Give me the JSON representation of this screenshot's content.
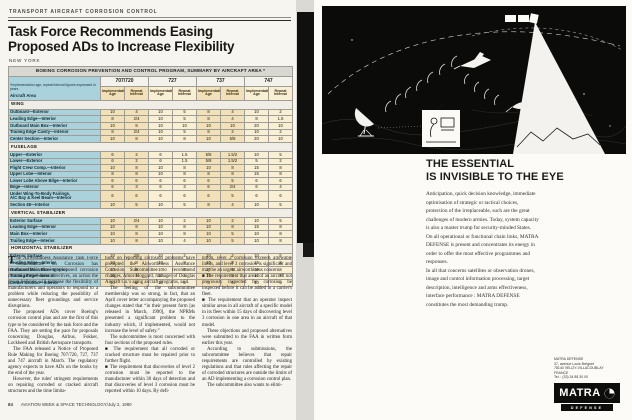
{
  "page": {
    "kicker": "TRANSPORT AIRCRAFT CORROSION CONTROL",
    "headline_line1": "Task Force Recommends Easing",
    "headline_line2": "Proposed ADs to Increase Flexibility",
    "byline": "NEW YORK",
    "page_number": "84",
    "footer": "AVIATION WEEK & SPACE TECHNOLOGY/July 2, 1990"
  },
  "colors": {
    "table_label_bg": "#a9d2dc",
    "table_cell_tan": "#f2e1b8",
    "table_cell_cream": "#f9efd4",
    "ad_background": "#0a0a0a"
  },
  "table": {
    "title": "BOEING CORROSION PREVENTION AND CONTROL PROGRAM, SUMMARY BY AIRCRAFT AREA *",
    "note": "*Implementation age, repeat interval figures expressed in years",
    "row_header": "Aircraft Area",
    "groups": [
      "707/720",
      "727",
      "737",
      "747"
    ],
    "subheaders": [
      "Implementation Age",
      "Repeat Interval"
    ],
    "sections": [
      {
        "name": "WING",
        "rows": [
          {
            "label": "Outboard—Exterior",
            "values": [
              "10",
              "4",
              "10",
              "5",
              "8",
              "4",
              "10",
              "2"
            ]
          },
          {
            "label": "Leading Edge—Interior",
            "values": [
              "8",
              "2/4",
              "10",
              "5",
              "8",
              "4",
              "8",
              "1.5"
            ]
          },
          {
            "label": "Outboard Main Box—Interior",
            "values": [
              "10",
              "8",
              "10",
              "10",
              "10",
              "10",
              "20",
              "10"
            ]
          },
          {
            "label": "Trailing Edge Cavity—Interior",
            "values": [
              "8",
              "2/4",
              "10",
              "5",
              "8",
              "2",
              "10",
              "2"
            ]
          },
          {
            "label": "Center Section—Interior",
            "values": [
              "10",
              "8",
              "10",
              "8",
              "10",
              "5/8",
              "20",
              "10"
            ]
          }
        ]
      },
      {
        "name": "FUSELAGE",
        "rows": [
          {
            "label": "Upper—Exterior",
            "values": [
              "6",
              "2",
              "6",
              "1.5",
              "5/8",
              "1.5/2",
              "10",
              "5"
            ]
          },
          {
            "label": "Lower—Exterior",
            "values": [
              "6",
              "2",
              "6",
              "1.5",
              "5/8",
              "1.5/2",
              "5",
              "2"
            ]
          },
          {
            "label": "Flight Crew Comp.—Interior",
            "values": [
              "10",
              "8",
              "10",
              "8",
              "10",
              "8",
              "15",
              "8"
            ]
          },
          {
            "label": "Upper Lobe—Interior",
            "values": [
              "8",
              "8",
              "10",
              "8",
              "8",
              "8",
              "15",
              "8"
            ]
          },
          {
            "label": "Lower Lobe Above Bilge—Interior",
            "values": [
              "6",
              "6",
              "6",
              "6",
              "6",
              "5",
              "6",
              "6"
            ]
          },
          {
            "label": "Bilge—Interior",
            "values": [
              "6",
              "3",
              "6",
              "3",
              "6",
              "2/4",
              "6",
              "4"
            ]
          },
          {
            "label": "Under Wing-To-Body Fairings,\nA/C Bay & Keel Beam—Interior",
            "values": [
              "6",
              "6",
              "6",
              "6",
              "6",
              "5",
              "6",
              "6"
            ]
          },
          {
            "label": "Section 48—Interior",
            "values": [
              "10",
              "5",
              "10",
              "5",
              "8",
              "4",
              "10",
              "5"
            ]
          }
        ]
      },
      {
        "name": "VERTICAL STABILIZER",
        "rows": [
          {
            "label": "Exterior Surface",
            "values": [
              "10",
              "2/4",
              "10",
              "2",
              "10",
              "2",
              "10",
              "5"
            ]
          },
          {
            "label": "Leading Edge—Interior",
            "values": [
              "10",
              "8",
              "10",
              "8",
              "10",
              "8",
              "15",
              "8"
            ]
          },
          {
            "label": "Main Box—Interior",
            "values": [
              "10",
              "8",
              "10",
              "8",
              "10",
              "5",
              "10",
              "8"
            ]
          },
          {
            "label": "Trailing Edge—Interior",
            "values": [
              "10",
              "8",
              "10",
              "4",
              "10",
              "5",
              "10",
              "8"
            ]
          }
        ]
      },
      {
        "name": "HORIZONTAL STABILIZER",
        "rows": [
          {
            "label": "Exterior Surface",
            "values": [
              "10",
              "2/5",
              "10",
              "2",
              "10",
              "2",
              "10",
              "5"
            ]
          },
          {
            "label": "Leading Edge—Interior",
            "values": [
              "10",
              "8",
              "10",
              "8",
              "10",
              "8",
              "15",
              "8"
            ]
          },
          {
            "label": "Outboard Main Box—Interior",
            "values": [
              "10",
              "8",
              "10",
              "8",
              "10",
              "5",
              "10",
              "8"
            ]
          },
          {
            "label": "Trailing Edge—Interior",
            "values": [
              "10",
              "8",
              "10",
              "4",
              "10",
              "5",
              "10",
              "8"
            ]
          },
          {
            "label": "Center Section—Interior",
            "values": [
              "10",
              "5",
              "10",
              "5",
              "8",
              "4",
              "10",
              "5"
            ]
          }
        ]
      }
    ]
  },
  "article": {
    "col1": [
      "The Airworthiness Assurance Task Force Subcommittee on Corrosion has recommended softening proposed corrosion control airworthiness directives, an action the group believes will increase the flexibility of manufacturers and operators to respond to a problem while reducing the possibility of unnecessary fleet groundings and service disruptions.",
      "The proposed ADs cover Boeing's corrosion control plan and are the first of this type to be considered by the task force and the FAA. They are setting the pace for proposals concerning Douglas, Airbus, Fokker, Lockheed and British Aerospace transports.",
      "The FAA released a Notice of Proposed Rule Making for Boeing 707/720, 727, 737 and 747 aircraft in March. The regulatory agency expects to have ADs on the books by the end of the year.",
      "However, the rules' stringent requirements on repairing corroded or cracked aircraft structures and the time limita-"
    ],
    "col2": [
      "tions on reporting corrosion problems have prompted the Airworthiness Assurance Corrosion Subcommittee to recommend changes, Amos Hoggard, manager of Douglas Aircraft Co.'s aging aircraft programs, said.",
      "The feeling of the subcommittee membership was so strong, in fact, that an April cover letter accompanying the proposed changes stated that “in their present form [as released in March, 1990], the NPRMs presented a significant problem to the industry which, if implemented, would not increase the level of safety.”",
      "The subcommittee is most concerned with four sections of the proposed rules.",
      "■ The requirement that all corroded or cracked structure must be repaired prior to further flight.",
      "■ The requirement that discoveries of level 2 corrosion must be reported to the manufacturer within 30 days of detection and that discoveries of level 3 corrosion must be reported within 10 days. By defi-"
    ],
    "col3": [
      "nition, level 2 corrosion exceeds allowable limits, and level 3 corrosion is significant and may be an urgent airworthiness concern.",
      "■ The requirement that areas of an aircraft not previously inspected for corrosion be inspected before it can be added to a carrier's fleet.",
      "■ The requirement that an operator inspect similar areas in all aircraft of a specific model in its fleet within 15 days of discovering level 3 corrosion in one area in an aircraft of that model.",
      "These objections and proposed alternatives were submitted to the FAA in written form earlier this year.",
      "According to submissions, the subcommittee believes that repair requirements are controlled by existing regulations and that rules affecting the repair of corroded structures are outside the limits of an AD implementing a corrosion control plan.",
      "The subcommittee also wants to elimi-"
    ]
  },
  "ad": {
    "headline_line1": "THE ESSENTIAL",
    "headline_line2": "IS INVISIBLE TO THE EYE",
    "body": [
      "Anticipation, quick decision knowledge, immediate optimisation of strategic or tactical choices, protection of the irreplaceable, such are the great challenges of modern armies. Today, system capacity is also a master trump for security-minded States.",
      "On all operational or functional chain links, MATRA DEFENSE is present and concentrates its energy in order to offer the most effective programmes and responses.",
      "In all that concerns satellites or observation drones, image and control information processing, target description, intelligence and arms effectiveness, interface performance : MATRA DEFENSE constitutes the most demanding trump."
    ],
    "address": [
      "MATRA DEFENSE",
      "37, avenue Louis Bréguet",
      "78140 VELIZY-VILLACOUBLAY",
      "FRANCE",
      "Tel. : (33) 34 88 30 00"
    ],
    "logo_text": "MATRA",
    "logo_sub": "DEFENSE"
  }
}
